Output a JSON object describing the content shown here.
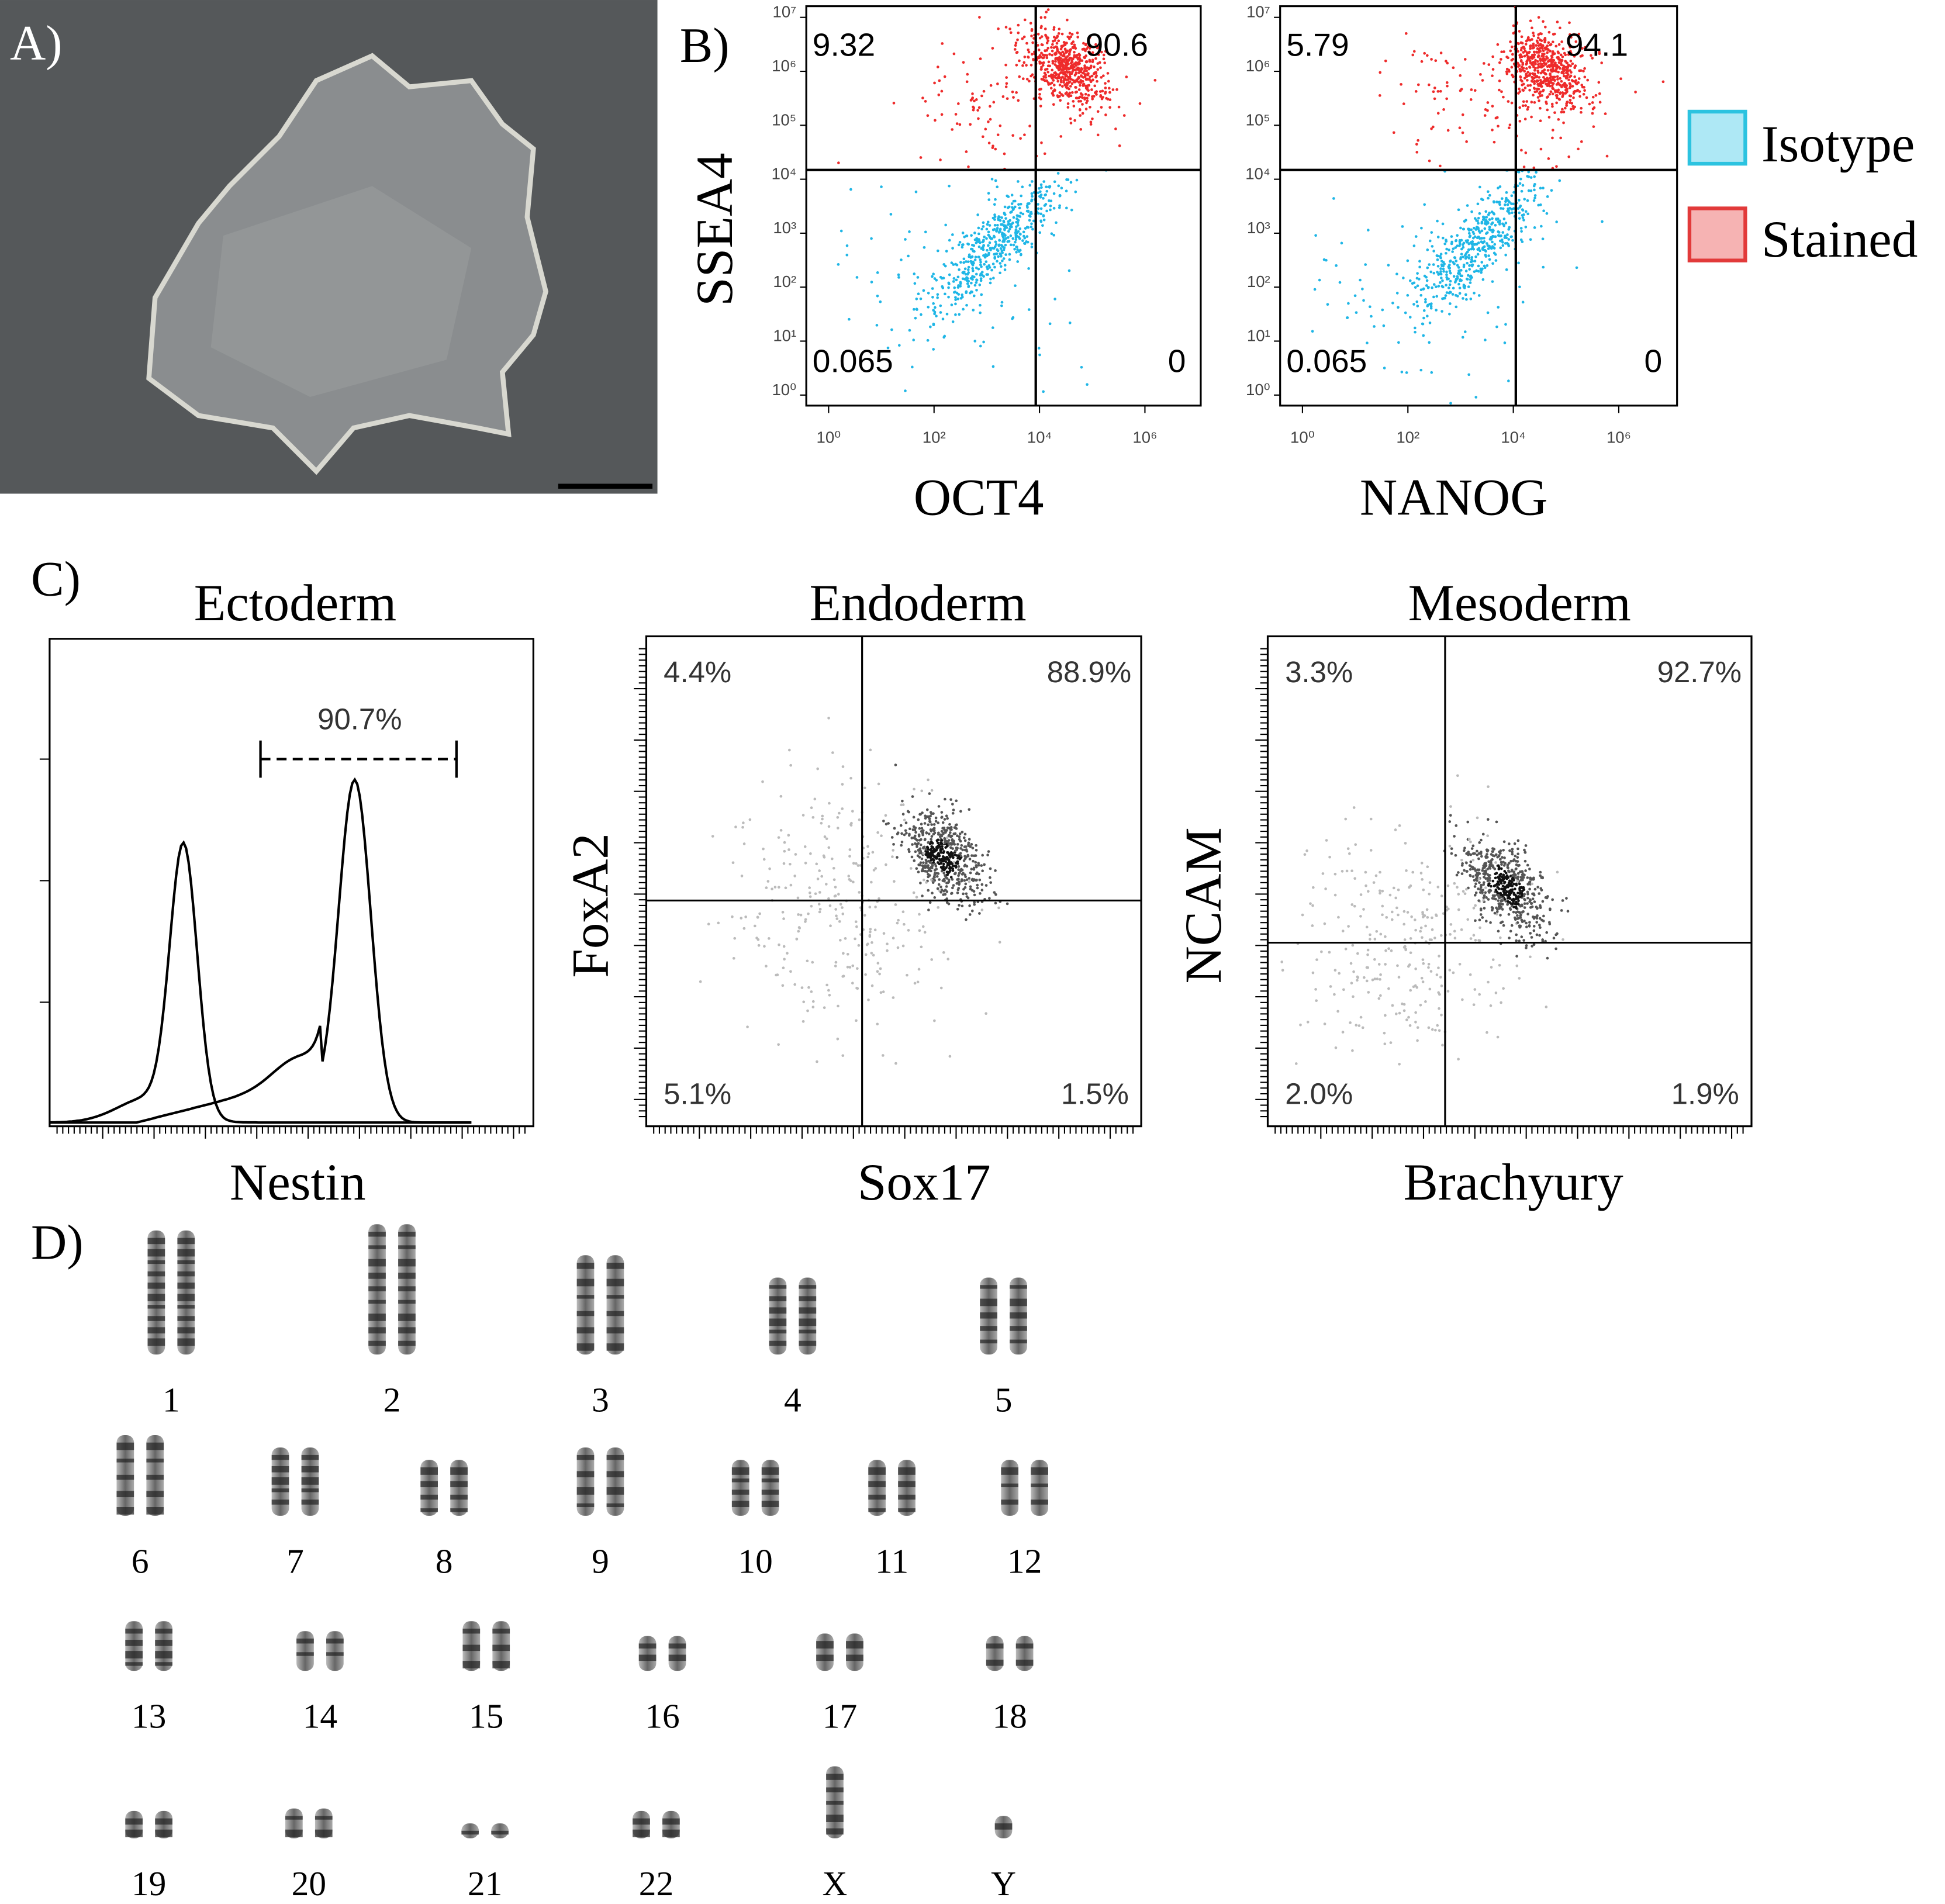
{
  "panels": {
    "A": {
      "label": "A)"
    },
    "B": {
      "label": "B)",
      "y_axis_label": "SSEA4",
      "y_ticks": [
        "10⁷",
        "10⁶",
        "10⁵",
        "10⁴",
        "10³",
        "10²",
        "10¹",
        "10⁰"
      ],
      "x_ticks": [
        "10⁰",
        "10²",
        "10⁴",
        "10⁶"
      ],
      "plots": [
        {
          "x_axis_label": "OCT4",
          "quadrants": [
            "9.32",
            "90.6",
            "0.065",
            "0"
          ]
        },
        {
          "x_axis_label": "NANOG",
          "quadrants": [
            "5.79",
            "94.1",
            "0.065",
            "0"
          ]
        }
      ],
      "legend": [
        "Isotype",
        "Stained"
      ]
    },
    "C": {
      "label": "C)",
      "plots": [
        {
          "title": "Ectoderm",
          "x_axis_label": "Nestin",
          "gate": "90.7%"
        },
        {
          "title": "Endoderm",
          "y_axis_label": "FoxA2",
          "x_axis_label": "Sox17",
          "quadrants": [
            "4.4%",
            "88.9%",
            "5.1%",
            "1.5%"
          ]
        },
        {
          "title": "Mesoderm",
          "y_axis_label": "NCAM",
          "x_axis_label": "Brachyury",
          "quadrants": [
            "3.3%",
            "92.7%",
            "2.0%",
            "1.9%"
          ]
        }
      ]
    },
    "D": {
      "label": "D)",
      "chromosomes": [
        "1",
        "2",
        "3",
        "4",
        "5",
        "6",
        "7",
        "8",
        "9",
        "10",
        "11",
        "12",
        "13",
        "14",
        "15",
        "16",
        "17",
        "18",
        "19",
        "20",
        "21",
        "22",
        "X",
        "Y"
      ]
    }
  }
}
